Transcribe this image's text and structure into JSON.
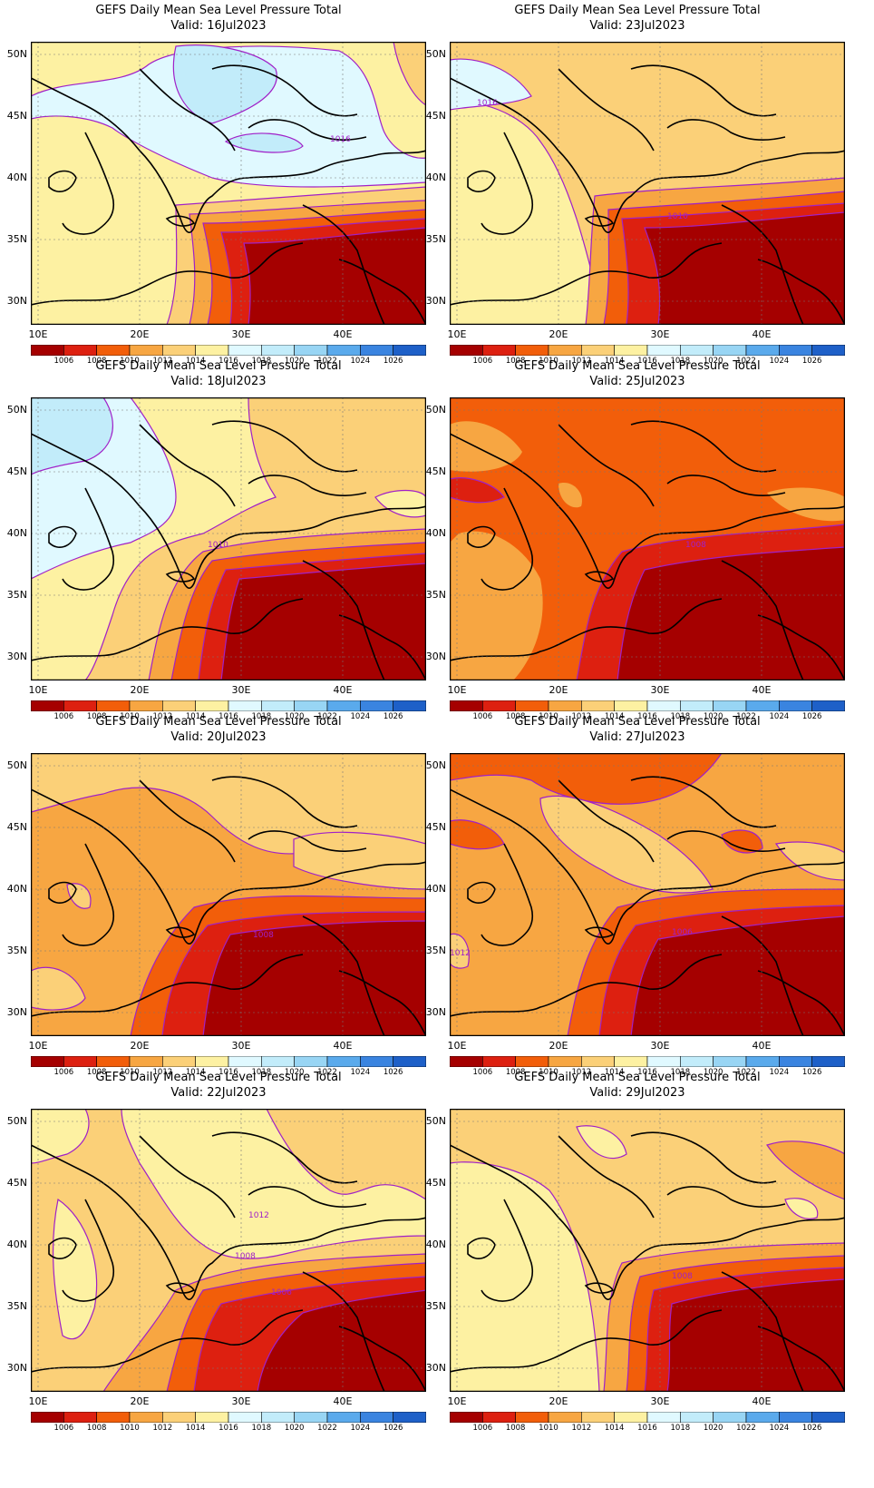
{
  "figure": {
    "panel_title": "GEFS Daily Mean Sea Level Pressure Total",
    "lat_labels": [
      "50N",
      "45N",
      "40N",
      "35N",
      "30N"
    ],
    "lon_labels": [
      "10E",
      "20E",
      "30E",
      "40E"
    ]
  },
  "colorbar": {
    "labels": [
      "1006",
      "1008",
      "1010",
      "1012",
      "1014",
      "1016",
      "1018",
      "1020",
      "1022",
      "1024",
      "1026"
    ],
    "colors": [
      "#a50000",
      "#dd2010",
      "#f25e0a",
      "#f7a642",
      "#fbd078",
      "#fdf1a2",
      "#e0f9ff",
      "#c2ecfa",
      "#98d5f4",
      "#5aaaec",
      "#3a84e0",
      "#1e60c8"
    ]
  },
  "panels": [
    {
      "valid": "Valid: 16Jul2023",
      "contour_labels": [
        "1016"
      ]
    },
    {
      "valid": "Valid: 23Jul2023",
      "contour_labels": [
        "1016",
        "1010"
      ]
    },
    {
      "valid": "Valid: 18Jul2023",
      "contour_labels": [
        "1010"
      ]
    },
    {
      "valid": "Valid: 25Jul2023",
      "contour_labels": [
        "1008"
      ]
    },
    {
      "valid": "Valid: 20Jul2023",
      "contour_labels": [
        "1008"
      ]
    },
    {
      "valid": "Valid: 27Jul2023",
      "contour_labels": [
        "1012",
        "1006"
      ]
    },
    {
      "valid": "Valid: 22Jul2023",
      "contour_labels": [
        "1012",
        "1008",
        "1006"
      ]
    },
    {
      "valid": "Valid: 29Jul2023",
      "contour_labels": [
        "1008"
      ]
    }
  ]
}
